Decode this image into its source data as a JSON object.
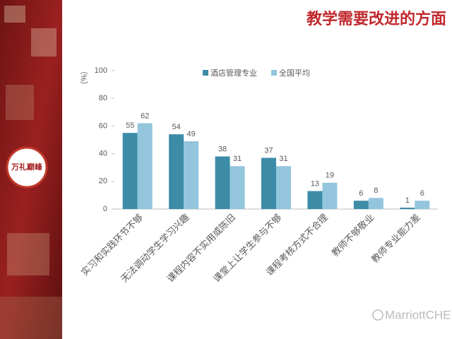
{
  "chart_data": {
    "type": "bar",
    "title": "教学需要改进的方面",
    "y_label": "（%）",
    "categories": [
      "实习和实践环节不够",
      "无法调动学生学习兴趣",
      "课程内容不实用或陈旧",
      "课堂上让学生参与不够",
      "课程考核方式不合理",
      "教师不够敬业",
      "教师专业能力差"
    ],
    "series": [
      {
        "name": "酒店管理专业",
        "color": "#3c8ca8",
        "values": [
          55,
          54,
          38,
          37,
          13,
          6,
          1
        ]
      },
      {
        "name": "全国平均",
        "color": "#93c6dd",
        "values": [
          62,
          49,
          31,
          31,
          19,
          8,
          6
        ]
      }
    ],
    "ylim": [
      0,
      100
    ],
    "yticks": [
      0,
      20,
      40,
      60,
      80,
      100
    ],
    "legend": "top"
  },
  "logo": "万礼巅峰",
  "watermark": "MarriottCHEI"
}
